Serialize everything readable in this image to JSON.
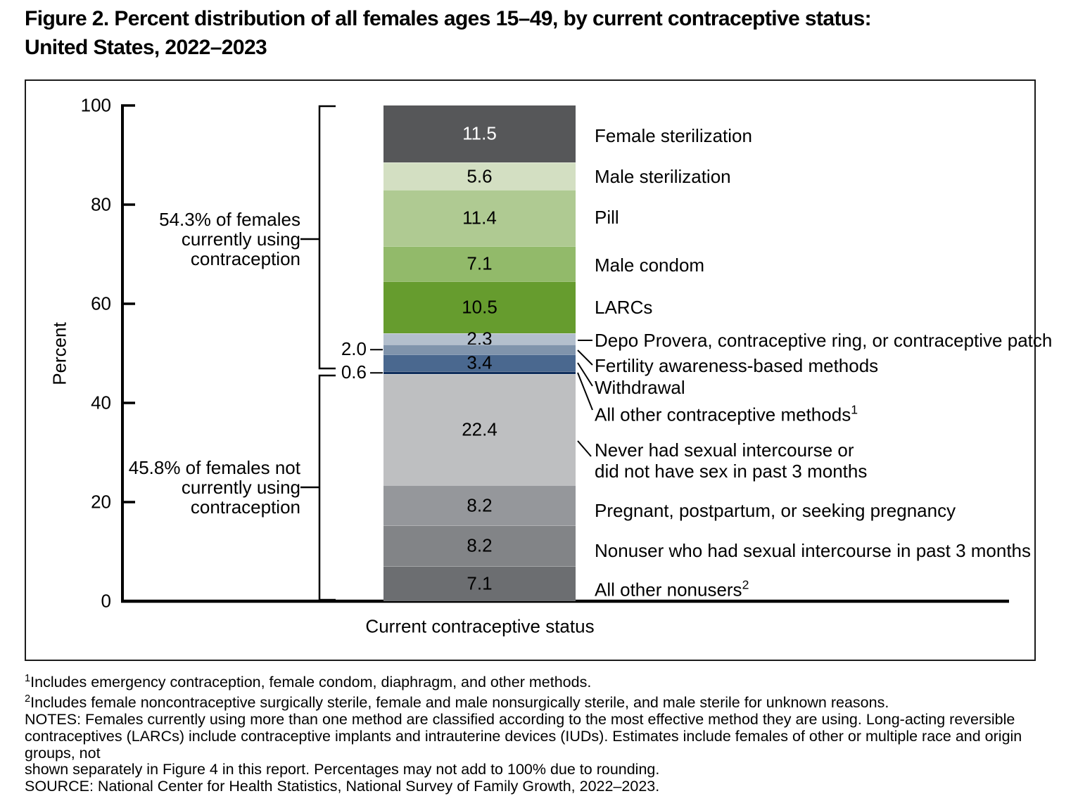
{
  "title_lines": [
    "Figure 2. Percent distribution of all females ages 15–49, by current contraceptive status:",
    "United States, 2022–2023"
  ],
  "chart_data": {
    "type": "bar",
    "stacked": true,
    "orientation": "vertical",
    "x_axis_title": "Current contraceptive status",
    "y_axis_title": "Percent",
    "ylim": [
      0,
      100
    ],
    "y_ticks": [
      0,
      20,
      40,
      60,
      80,
      100
    ],
    "grid": false,
    "segments": [
      {
        "label": "Female sterilization",
        "value": 11.5,
        "color": "#565759",
        "value_text_color": "#ffffff",
        "value_placement": "inside"
      },
      {
        "label": "Male sterilization",
        "value": 5.6,
        "color": "#d3dfc2",
        "value_text_color": "#000000",
        "value_placement": "inside"
      },
      {
        "label": "Pill",
        "value": 11.4,
        "color": "#afca92",
        "value_text_color": "#000000",
        "value_placement": "inside"
      },
      {
        "label": "Male condom",
        "value": 7.1,
        "color": "#92ba6a",
        "value_text_color": "#000000",
        "value_placement": "inside"
      },
      {
        "label": "LARCs",
        "value": 10.5,
        "color": "#669c2e",
        "value_text_color": "#000000",
        "value_placement": "inside"
      },
      {
        "label": "Depo Provera, contraceptive ring, or contraceptive patch",
        "value": 2.3,
        "color": "#b3bfcd",
        "value_text_color": "#000000",
        "value_placement": "inside"
      },
      {
        "label": "Fertility awareness-based methods",
        "value": 2.0,
        "color": "#8094ac",
        "value_text_color": "#000000",
        "value_placement": "left"
      },
      {
        "label": "Withdrawal",
        "value": 3.4,
        "color": "#4a688f",
        "value_text_color": "#000000",
        "value_placement": "inside"
      },
      {
        "label": "All other contraceptive methods",
        "label_sup": "1",
        "value": 0.6,
        "color": "#112f5d",
        "value_text_color": "#000000",
        "value_placement": "left"
      },
      {
        "label_lines": [
          "Never had sexual intercourse or",
          "did not have sex in past 3 months"
        ],
        "label": "Never had sexual intercourse or did not have sex in past 3 months",
        "value": 22.4,
        "color": "#bebfc1",
        "value_text_color": "#000000",
        "value_placement": "inside"
      },
      {
        "label": "Pregnant, postpartum, or seeking pregnancy",
        "value": 8.2,
        "color": "#95979b",
        "value_text_color": "#000000",
        "value_placement": "inside"
      },
      {
        "label": "Nonuser who had sexual intercourse in past 3 months",
        "value": 8.2,
        "color": "#828487",
        "value_text_color": "#000000",
        "value_placement": "inside"
      },
      {
        "label": "All other nonusers",
        "label_sup": "2",
        "value": 7.1,
        "color": "#6c6e71",
        "value_text_color": "#000000",
        "value_placement": "inside"
      }
    ],
    "group_annotations": [
      {
        "lines": [
          "54.3% of females",
          "currently using",
          "contraception"
        ],
        "percent": 54.3,
        "range_percent": [
          45.7,
          100
        ]
      },
      {
        "lines": [
          "45.8% of females not",
          "currently using",
          "contraception"
        ],
        "percent": 45.8,
        "range_percent": [
          0,
          45.6
        ]
      }
    ]
  },
  "footnotes": [
    {
      "sup": "1",
      "text": "Includes emergency contraception, female condom, diaphragm, and other methods."
    },
    {
      "sup": "2",
      "text": "Includes female noncontraceptive surgically sterile, female and male nonsurgically sterile, and male sterile for unknown reasons."
    }
  ],
  "notes_lines": [
    "NOTES: Females currently using more than one method are classified according to the most effective method they are using. Long-acting reversible",
    "contraceptives (LARCs) include contraceptive implants and intrauterine devices (IUDs). Estimates include females of other or multiple race and origin groups, not",
    "shown separately in Figure 4 in this report. Percentages may not add to 100% due to rounding."
  ],
  "source_line": "SOURCE: National Center for Health Statistics, National Survey of Family Growth, 2022–2023."
}
